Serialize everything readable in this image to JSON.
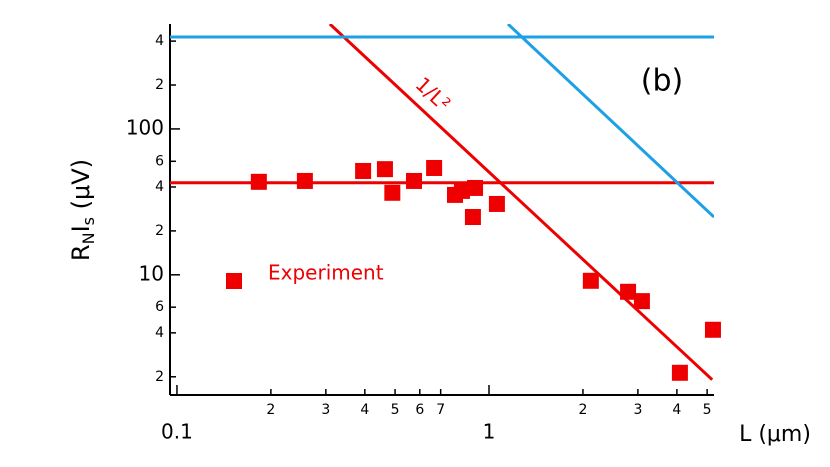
{
  "chart_data": {
    "type": "scatter",
    "log_x": true,
    "log_y": true,
    "y_label": [
      "R",
      "N",
      "I",
      "s",
      " (μV)"
    ],
    "x_label": "L (μm)",
    "annotations": [
      "(b)",
      "1/L²"
    ],
    "xlim": [
      0.095,
      5.26
    ],
    "ylim": [
      1.5,
      524
    ],
    "xticks": [
      0.1,
      {
        "value": 0.2,
        "label": "2"
      },
      {
        "value": 0.3,
        "label": "3"
      },
      {
        "value": 0.4,
        "label": "4"
      },
      {
        "value": 0.5,
        "label": "5"
      },
      {
        "value": 0.6,
        "label": "6"
      },
      {
        "value": 0.7,
        "label": "7"
      },
      1,
      2,
      3,
      4,
      5
    ],
    "yticks": [
      2,
      4,
      6,
      10,
      {
        "value": 20,
        "label": "2"
      },
      {
        "value": 40,
        "label": "4"
      },
      {
        "value": 60,
        "label": "6"
      },
      100,
      {
        "value": 200,
        "label": "2"
      },
      {
        "value": 400,
        "label": "4"
      }
    ],
    "series": [
      {
        "name": "Experiment",
        "color": "#ee0000",
        "x": [
          0.183,
          0.257,
          0.395,
          0.464,
          0.49,
          0.575,
          0.667,
          0.778,
          0.819,
          0.902,
          0.888,
          1.06,
          2.12,
          2.79,
          3.09,
          4.09,
          5.22
        ],
        "values": [
          43.4,
          44,
          51.5,
          53,
          36.5,
          44,
          54,
          35.3,
          37.6,
          39.4,
          24.9,
          30.6,
          9.1,
          7.65,
          6.6,
          2.13,
          4.2
        ]
      }
    ],
    "lines": [
      {
        "color": "#ee0000",
        "x": [
          0.095,
          5.26
        ],
        "values": [
          42.8,
          42.8
        ]
      },
      {
        "color": "#ee0000",
        "x": [
          0.309,
          5.19
        ],
        "values": [
          524,
          1.91
        ]
      },
      {
        "color": "#1ea0e6",
        "x": [
          0.095,
          5.26
        ],
        "values": [
          427,
          427
        ]
      },
      {
        "color": "#1ea0e6",
        "x": [
          1.15,
          5.26
        ],
        "values": [
          524,
          24.9
        ]
      }
    ]
  }
}
